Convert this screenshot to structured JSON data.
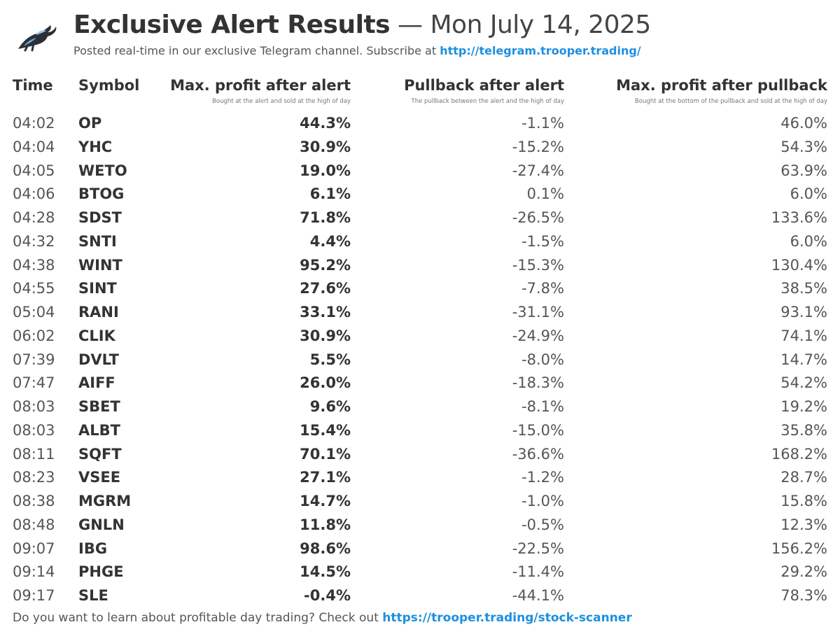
{
  "header": {
    "title_bold": "Exclusive Alert Results",
    "title_rest": " — Mon July 14, 2025",
    "subtitle_text": "Posted real-time in our exclusive Telegram channel. Subscribe at ",
    "subtitle_link": "http://telegram.trooper.trading/"
  },
  "columns": {
    "time": "Time",
    "symbol": "Symbol",
    "profit": "Max. profit after alert",
    "profit_note": "Bought at the alert and sold at the high of day",
    "pullback": "Pullback after alert",
    "pullback_note": "The pullback between the alert and the high of day",
    "after": "Max. profit after pullback",
    "after_note": "Bought at the bottom of the pullback and sold at the high of day"
  },
  "rows": [
    {
      "time": "04:02",
      "symbol": "OP",
      "profit": "44.3%",
      "pullback": "-1.1%",
      "after": "46.0%"
    },
    {
      "time": "04:04",
      "symbol": "YHC",
      "profit": "30.9%",
      "pullback": "-15.2%",
      "after": "54.3%"
    },
    {
      "time": "04:05",
      "symbol": "WETO",
      "profit": "19.0%",
      "pullback": "-27.4%",
      "after": "63.9%"
    },
    {
      "time": "04:06",
      "symbol": "BTOG",
      "profit": "6.1%",
      "pullback": "0.1%",
      "after": "6.0%"
    },
    {
      "time": "04:28",
      "symbol": "SDST",
      "profit": "71.8%",
      "pullback": "-26.5%",
      "after": "133.6%"
    },
    {
      "time": "04:32",
      "symbol": "SNTI",
      "profit": "4.4%",
      "pullback": "-1.5%",
      "after": "6.0%"
    },
    {
      "time": "04:38",
      "symbol": "WINT",
      "profit": "95.2%",
      "pullback": "-15.3%",
      "after": "130.4%"
    },
    {
      "time": "04:55",
      "symbol": "SINT",
      "profit": "27.6%",
      "pullback": "-7.8%",
      "after": "38.5%"
    },
    {
      "time": "05:04",
      "symbol": "RANI",
      "profit": "33.1%",
      "pullback": "-31.1%",
      "after": "93.1%"
    },
    {
      "time": "06:02",
      "symbol": "CLIK",
      "profit": "30.9%",
      "pullback": "-24.9%",
      "after": "74.1%"
    },
    {
      "time": "07:39",
      "symbol": "DVLT",
      "profit": "5.5%",
      "pullback": "-8.0%",
      "after": "14.7%"
    },
    {
      "time": "07:47",
      "symbol": "AIFF",
      "profit": "26.0%",
      "pullback": "-18.3%",
      "after": "54.2%"
    },
    {
      "time": "08:03",
      "symbol": "SBET",
      "profit": "9.6%",
      "pullback": "-8.1%",
      "after": "19.2%"
    },
    {
      "time": "08:03",
      "symbol": "ALBT",
      "profit": "15.4%",
      "pullback": "-15.0%",
      "after": "35.8%"
    },
    {
      "time": "08:11",
      "symbol": "SQFT",
      "profit": "70.1%",
      "pullback": "-36.6%",
      "after": "168.2%"
    },
    {
      "time": "08:23",
      "symbol": "VSEE",
      "profit": "27.1%",
      "pullback": "-1.2%",
      "after": "28.7%"
    },
    {
      "time": "08:38",
      "symbol": "MGRM",
      "profit": "14.7%",
      "pullback": "-1.0%",
      "after": "15.8%"
    },
    {
      "time": "08:48",
      "symbol": "GNLN",
      "profit": "11.8%",
      "pullback": "-0.5%",
      "after": "12.3%"
    },
    {
      "time": "09:07",
      "symbol": "IBG",
      "profit": "98.6%",
      "pullback": "-22.5%",
      "after": "156.2%"
    },
    {
      "time": "09:14",
      "symbol": "PHGE",
      "profit": "14.5%",
      "pullback": "-11.4%",
      "after": "29.2%"
    },
    {
      "time": "09:17",
      "symbol": "SLE",
      "profit": "-0.4%",
      "pullback": "-44.1%",
      "after": "78.3%"
    }
  ],
  "footer": {
    "text": "Do you want to learn about profitable day trading? Check out ",
    "link": "https://trooper.trading/stock-scanner"
  },
  "colors": {
    "link": "#1d8fe0",
    "text": "#333333",
    "muted": "#555555"
  },
  "icons": {
    "logo": "bull-logo-icon"
  }
}
